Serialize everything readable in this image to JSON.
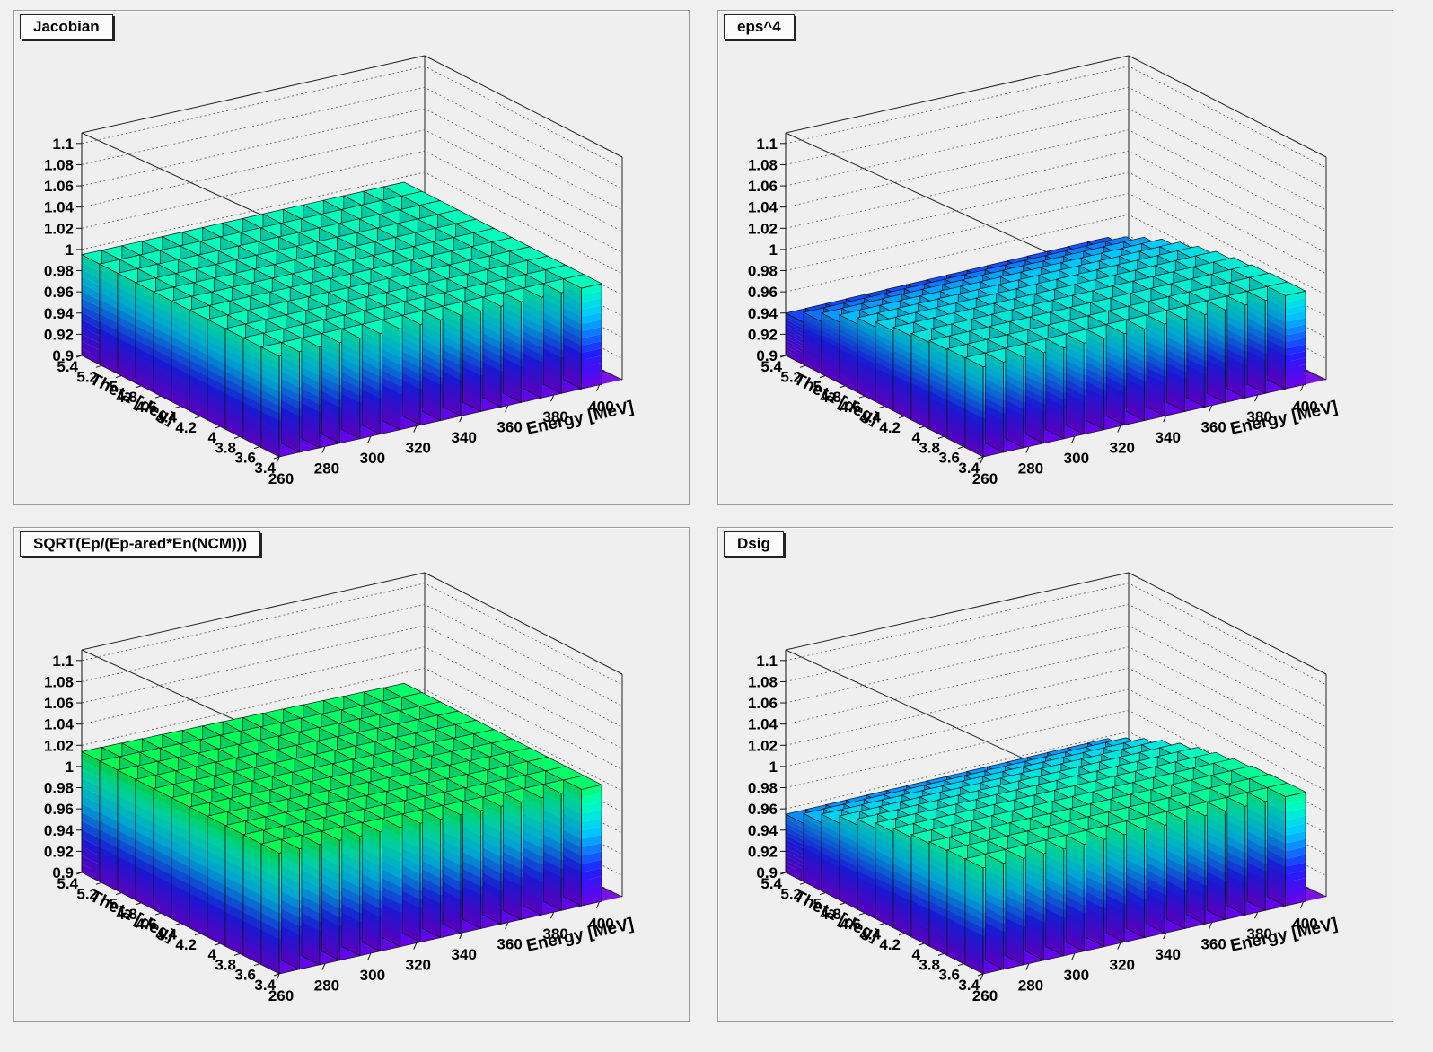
{
  "chart_data": [
    {
      "type": "lego3d",
      "title": "Jacobian",
      "xlabel": "Energy [MeV]",
      "ylabel": "Theta [deg]",
      "x_ticks": [
        "260",
        "280",
        "300",
        "320",
        "340",
        "360",
        "380",
        "400"
      ],
      "y_ticks": [
        "3.4",
        "3.6",
        "3.8",
        "4",
        "4.2",
        "4.4",
        "4.6",
        "4.8",
        "5",
        "5.2",
        "5.4"
      ],
      "z_ticks": [
        "0.9",
        "0.92",
        "0.94",
        "0.96",
        "0.98",
        "1",
        "1.02",
        "1.04",
        "1.06",
        "1.08",
        "1.1"
      ],
      "xlim": [
        260,
        410
      ],
      "ylim": [
        3.4,
        5.4
      ],
      "zlim": [
        0.9,
        1.11
      ],
      "surface": {
        "base": 0.995,
        "dx": 0.0,
        "dy": 0.0
      },
      "colormap": "rainbow"
    },
    {
      "type": "lego3d",
      "title": "eps^4",
      "xlabel": "Energy [MeV]",
      "ylabel": "Theta [deg]",
      "x_ticks": [
        "260",
        "280",
        "300",
        "320",
        "340",
        "360",
        "380",
        "400"
      ],
      "y_ticks": [
        "3.4",
        "3.6",
        "3.8",
        "4",
        "4.2",
        "4.4",
        "4.6",
        "4.8",
        "5",
        "5.2",
        "5.4"
      ],
      "z_ticks": [
        "0.9",
        "0.92",
        "0.94",
        "0.96",
        "0.98",
        "1",
        "1.02",
        "1.04",
        "1.06",
        "1.08",
        "1.1"
      ],
      "xlim": [
        260,
        410
      ],
      "ylim": [
        3.4,
        5.4
      ],
      "zlim": [
        0.9,
        1.11
      ],
      "surface": {
        "base": 0.985,
        "dx": 0.003,
        "dy": -0.1
      },
      "colormap": "rainbow"
    },
    {
      "type": "lego3d",
      "title": "SQRT(Ep/(Ep-ared*En(NCM)))",
      "xlabel": "Energy [MeV]",
      "ylabel": "Theta [deg]",
      "x_ticks": [
        "260",
        "280",
        "300",
        "320",
        "340",
        "360",
        "380",
        "400"
      ],
      "y_ticks": [
        "3.4",
        "3.6",
        "3.8",
        "4",
        "4.2",
        "4.4",
        "4.6",
        "4.8",
        "5",
        "5.2",
        "5.4"
      ],
      "z_ticks": [
        "0.9",
        "0.92",
        "0.94",
        "0.96",
        "0.98",
        "1",
        "1.02",
        "1.04",
        "1.06",
        "1.08",
        "1.1"
      ],
      "xlim": [
        260,
        410
      ],
      "ylim": [
        3.4,
        5.4
      ],
      "zlim": [
        0.9,
        1.11
      ],
      "surface": {
        "base": 1.014,
        "dx": -0.004,
        "dy": 0.0
      },
      "colormap": "rainbow"
    },
    {
      "type": "lego3d",
      "title": "Dsig",
      "xlabel": "Energy [MeV]",
      "ylabel": "Theta [deg]",
      "x_ticks": [
        "260",
        "280",
        "300",
        "320",
        "340",
        "360",
        "380",
        "400"
      ],
      "y_ticks": [
        "3.4",
        "3.6",
        "3.8",
        "4",
        "4.2",
        "4.4",
        "4.6",
        "4.8",
        "5",
        "5.2",
        "5.4"
      ],
      "z_ticks": [
        "0.9",
        "0.92",
        "0.94",
        "0.96",
        "0.98",
        "1",
        "1.02",
        "1.04",
        "1.06",
        "1.08",
        "1.1"
      ],
      "xlim": [
        260,
        410
      ],
      "ylim": [
        3.4,
        5.4
      ],
      "zlim": [
        0.9,
        1.11
      ],
      "surface": {
        "base": 1.0,
        "dx": 0.003,
        "dy": -0.1
      },
      "colormap": "rainbow"
    }
  ]
}
